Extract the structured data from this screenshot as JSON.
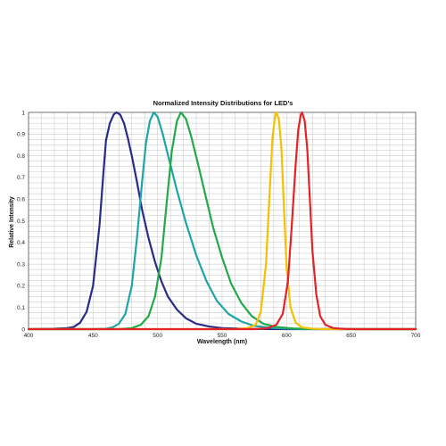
{
  "chart_data": {
    "type": "line",
    "title": "Normalized Intensity Distributions for LED's",
    "xlabel": "Wavelength (nm)",
    "ylabel": "Relative Intensity",
    "xlim": [
      400,
      700
    ],
    "ylim": [
      0,
      1
    ],
    "xticks": [
      400,
      450,
      500,
      550,
      600,
      650,
      700
    ],
    "yticks": [
      0,
      0.1,
      0.2,
      0.3,
      0.4,
      0.5,
      0.6,
      0.7,
      0.8,
      0.9,
      1
    ],
    "grid": true,
    "series": [
      {
        "color": "#2b2a86",
        "points": [
          [
            400,
            0
          ],
          [
            420,
            0.002
          ],
          [
            430,
            0.005
          ],
          [
            435,
            0.01
          ],
          [
            440,
            0.03
          ],
          [
            445,
            0.08
          ],
          [
            450,
            0.2
          ],
          [
            455,
            0.48
          ],
          [
            458,
            0.72
          ],
          [
            460,
            0.87
          ],
          [
            463,
            0.95
          ],
          [
            466,
            0.99
          ],
          [
            468,
            1.0
          ],
          [
            471,
            0.99
          ],
          [
            474,
            0.95
          ],
          [
            477,
            0.88
          ],
          [
            480,
            0.8
          ],
          [
            484,
            0.68
          ],
          [
            488,
            0.55
          ],
          [
            493,
            0.42
          ],
          [
            498,
            0.31
          ],
          [
            503,
            0.22
          ],
          [
            508,
            0.15
          ],
          [
            515,
            0.09
          ],
          [
            522,
            0.05
          ],
          [
            530,
            0.025
          ],
          [
            540,
            0.012
          ],
          [
            550,
            0.005
          ],
          [
            570,
            0.001
          ],
          [
            600,
            0
          ],
          [
            700,
            0
          ]
        ]
      },
      {
        "color": "#1fa5a5",
        "points": [
          [
            400,
            0
          ],
          [
            450,
            0
          ],
          [
            460,
            0.002
          ],
          [
            465,
            0.008
          ],
          [
            470,
            0.025
          ],
          [
            475,
            0.07
          ],
          [
            480,
            0.2
          ],
          [
            484,
            0.42
          ],
          [
            488,
            0.68
          ],
          [
            491,
            0.86
          ],
          [
            494,
            0.96
          ],
          [
            497,
            1.0
          ],
          [
            500,
            0.98
          ],
          [
            504,
            0.9
          ],
          [
            509,
            0.78
          ],
          [
            515,
            0.64
          ],
          [
            522,
            0.49
          ],
          [
            530,
            0.34
          ],
          [
            538,
            0.22
          ],
          [
            546,
            0.13
          ],
          [
            555,
            0.07
          ],
          [
            565,
            0.035
          ],
          [
            575,
            0.015
          ],
          [
            590,
            0.005
          ],
          [
            610,
            0.001
          ],
          [
            700,
            0
          ]
        ]
      },
      {
        "color": "#23a84a",
        "points": [
          [
            400,
            0
          ],
          [
            470,
            0
          ],
          [
            480,
            0.005
          ],
          [
            487,
            0.02
          ],
          [
            493,
            0.06
          ],
          [
            498,
            0.15
          ],
          [
            503,
            0.33
          ],
          [
            507,
            0.58
          ],
          [
            511,
            0.82
          ],
          [
            515,
            0.96
          ],
          [
            518,
            1.0
          ],
          [
            522,
            0.97
          ],
          [
            526,
            0.89
          ],
          [
            531,
            0.77
          ],
          [
            537,
            0.62
          ],
          [
            543,
            0.47
          ],
          [
            550,
            0.33
          ],
          [
            557,
            0.21
          ],
          [
            565,
            0.12
          ],
          [
            573,
            0.06
          ],
          [
            582,
            0.025
          ],
          [
            592,
            0.01
          ],
          [
            605,
            0.003
          ],
          [
            620,
            0
          ],
          [
            700,
            0
          ]
        ]
      },
      {
        "color": "#f5c000",
        "points": [
          [
            400,
            0
          ],
          [
            560,
            0
          ],
          [
            570,
            0.005
          ],
          [
            576,
            0.02
          ],
          [
            580,
            0.08
          ],
          [
            584,
            0.3
          ],
          [
            587,
            0.65
          ],
          [
            589,
            0.88
          ],
          [
            591,
            0.98
          ],
          [
            592,
            1.0
          ],
          [
            594,
            0.97
          ],
          [
            596,
            0.83
          ],
          [
            598,
            0.55
          ],
          [
            600,
            0.28
          ],
          [
            603,
            0.1
          ],
          [
            607,
            0.03
          ],
          [
            612,
            0.008
          ],
          [
            620,
            0.002
          ],
          [
            630,
            0
          ],
          [
            700,
            0
          ]
        ]
      },
      {
        "color": "#e32326",
        "points": [
          [
            400,
            0
          ],
          [
            575,
            0
          ],
          [
            585,
            0.004
          ],
          [
            592,
            0.02
          ],
          [
            597,
            0.07
          ],
          [
            601,
            0.22
          ],
          [
            604,
            0.48
          ],
          [
            607,
            0.76
          ],
          [
            609,
            0.92
          ],
          [
            611,
            0.99
          ],
          [
            612,
            1.0
          ],
          [
            614,
            0.96
          ],
          [
            616,
            0.83
          ],
          [
            618,
            0.6
          ],
          [
            620,
            0.36
          ],
          [
            623,
            0.16
          ],
          [
            626,
            0.06
          ],
          [
            630,
            0.02
          ],
          [
            636,
            0.005
          ],
          [
            645,
            0.001
          ],
          [
            655,
            0
          ],
          [
            700,
            0
          ]
        ]
      }
    ]
  }
}
